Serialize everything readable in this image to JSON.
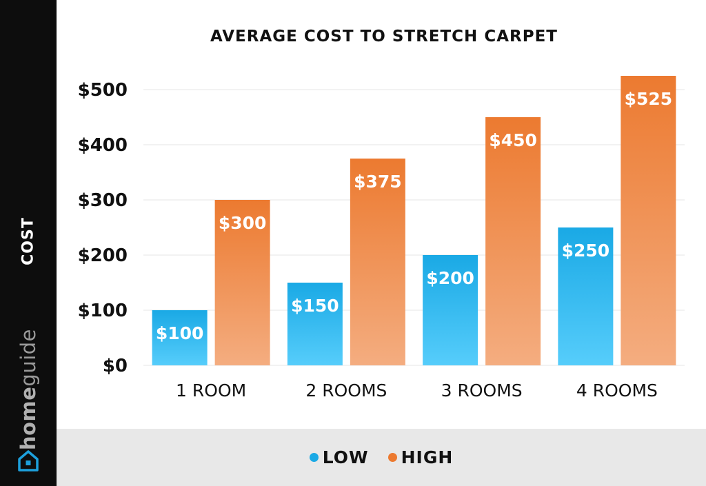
{
  "brand": {
    "part1": "home",
    "part2": "guide"
  },
  "icons": {
    "logo": "house-icon"
  },
  "colors": {
    "low_top": "#1aa9e5",
    "low_bottom": "#56cdfb",
    "high_top": "#ec7a30",
    "high_bottom": "#f4ad80",
    "sidebar": "#0d0d0d",
    "footer": "#e8e8e8",
    "grid": "#e6e6e6"
  },
  "chart_data": {
    "type": "bar",
    "title": "AVERAGE COST TO STRETCH CARPET",
    "xlabel": "",
    "ylabel": "COST",
    "categories": [
      "1 ROOM",
      "2 ROOMS",
      "3 ROOMS",
      "4 ROOMS"
    ],
    "series": [
      {
        "name": "LOW",
        "values": [
          100,
          150,
          200,
          250
        ],
        "labels": [
          "$100",
          "$150",
          "$200",
          "$250"
        ]
      },
      {
        "name": "HIGH",
        "values": [
          300,
          375,
          450,
          525
        ],
        "labels": [
          "$300",
          "$375",
          "$450",
          "$525"
        ]
      }
    ],
    "ylim": [
      0,
      500
    ],
    "yticks": [
      0,
      100,
      200,
      300,
      400,
      500
    ],
    "ytick_labels": [
      "$0",
      "$100",
      "$200",
      "$300",
      "$400",
      "$500"
    ],
    "grid": true,
    "legend": "bottom-center"
  }
}
